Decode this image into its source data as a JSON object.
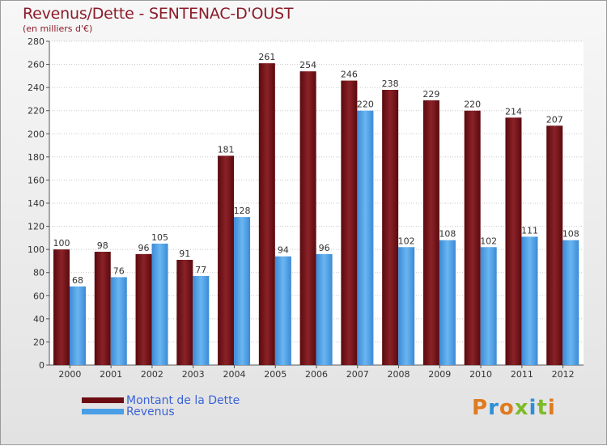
{
  "title": "Revenus/Dette - SENTENAC-D'OUST",
  "subtitle": "(en milliers d'€)",
  "colors": {
    "debt": "#6b0d12",
    "revenue": "#4a9ee6",
    "title": "#8b1c2a",
    "legend_text": "#3a63d6"
  },
  "legend": [
    {
      "label": "Montant de la Dette",
      "color": "#6b0d12"
    },
    {
      "label": "Revenus",
      "color": "#4a9ee6"
    }
  ],
  "logo": {
    "text": "Proxiti"
  },
  "chart_data": {
    "type": "bar",
    "title": "Revenus/Dette - SENTENAC-D'OUST",
    "ylabel": "(en milliers d'€)",
    "xlabel": "",
    "categories": [
      "2000",
      "2001",
      "2002",
      "2003",
      "2004",
      "2005",
      "2006",
      "2007",
      "2008",
      "2009",
      "2010",
      "2011",
      "2012"
    ],
    "series": [
      {
        "name": "Montant de la Dette",
        "values": [
          100,
          98,
          96,
          91,
          181,
          261,
          254,
          246,
          238,
          229,
          220,
          214,
          207
        ]
      },
      {
        "name": "Revenus",
        "values": [
          68,
          76,
          105,
          77,
          128,
          94,
          96,
          220,
          102,
          108,
          102,
          111,
          108
        ]
      }
    ],
    "ylim": [
      0,
      280
    ],
    "yticks": [
      0,
      20,
      40,
      60,
      80,
      100,
      120,
      140,
      160,
      180,
      200,
      220,
      240,
      260,
      280
    ],
    "grid": true,
    "legend_position": "bottom-left"
  }
}
